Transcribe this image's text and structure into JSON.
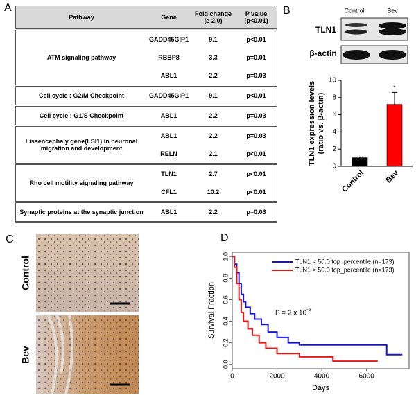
{
  "panel_labels": [
    "A",
    "B",
    "C",
    "D"
  ],
  "table": {
    "header": [
      "Pathway",
      "Gene",
      "Fold change (≥ 2.0)",
      "P value (p<0.01)"
    ],
    "groups": [
      {
        "pathway": "ATM signaling pathway",
        "rows": [
          [
            "GADD45GIP1",
            "9.1",
            "p<0.01"
          ],
          [
            "RBBP8",
            "3.3",
            "p=0.01"
          ],
          [
            "ABL1",
            "2.2",
            "p=0.03"
          ]
        ]
      },
      {
        "pathway": "Cell cycle : G2/M Checkpoint",
        "rows": [
          [
            "GADD45GIP1",
            "9.1",
            "p<0.01"
          ]
        ]
      },
      {
        "pathway": "Cell cycle : G1/S Checkpoint",
        "rows": [
          [
            "ABL1",
            "2.2",
            "p=0.03"
          ]
        ]
      },
      {
        "pathway": "Lissencephaly gene(LSI1) in neuronal migration and development",
        "rows": [
          [
            "ABL1",
            "2.2",
            "p=0.03"
          ],
          [
            "RELN",
            "2.1",
            "p<0.01"
          ]
        ]
      },
      {
        "pathway": "Rho cell motility signaling pathway",
        "rows": [
          [
            "TLN1",
            "2.7",
            "p<0.01"
          ],
          [
            "CFL1",
            "10.2",
            "p<0.01"
          ]
        ]
      },
      {
        "pathway": "Synaptic proteins at the synaptic junction",
        "rows": [
          [
            "ABL1",
            "2.2",
            "p=0.03"
          ]
        ]
      }
    ]
  },
  "blot": {
    "lanes": [
      "Control",
      "Bev"
    ],
    "rows": [
      "TLN1",
      "β-actin"
    ]
  },
  "ihc": {
    "rows": [
      "Control",
      "Bev"
    ]
  },
  "chart_data": [
    {
      "type": "bar",
      "y_label": [
        "TLN1 expression levels",
        "(ratio vs. β-actin)"
      ],
      "categories": [
        "Control",
        "Bev"
      ],
      "values": [
        1.0,
        7.2
      ],
      "errors": [
        0.1,
        1.4
      ],
      "colors": [
        "#000000",
        "#ff0000"
      ],
      "ylim": [
        0,
        10
      ],
      "yticks": [
        0,
        2,
        4,
        6,
        8,
        10
      ],
      "annotation": "*"
    },
    {
      "type": "line",
      "x_label": "Days",
      "y_label": "Survival Fraction",
      "series": [
        {
          "name": "TLN1 < 50.0 top_percentile (n=173)",
          "color": "#1515d8",
          "x": [
            0,
            100,
            200,
            300,
            400,
            500,
            600,
            800,
            1000,
            1300,
            1600,
            2000,
            2500,
            3000,
            6900,
            7600
          ],
          "values": [
            1.0,
            0.93,
            0.85,
            0.75,
            0.65,
            0.58,
            0.53,
            0.47,
            0.42,
            0.37,
            0.3,
            0.25,
            0.2,
            0.18,
            0.09,
            0.09
          ]
        },
        {
          "name": "TLN1 > 50.0 top_percentile (n=173)",
          "color": "#e01818",
          "x": [
            0,
            100,
            200,
            300,
            400,
            500,
            700,
            900,
            1200,
            1500,
            2000,
            3000,
            4500,
            6500
          ],
          "values": [
            1.0,
            0.9,
            0.75,
            0.6,
            0.48,
            0.4,
            0.33,
            0.27,
            0.2,
            0.15,
            0.1,
            0.07,
            0.03,
            0.03
          ]
        }
      ],
      "xlim": [
        0,
        7900
      ],
      "ylim": [
        -0.04,
        1.04
      ],
      "xticks": [
        0,
        2000,
        4000,
        6000
      ],
      "yticks": [
        {
          "value": 0,
          "label": "0.0"
        },
        0.2,
        0.4,
        0.6,
        0.8,
        {
          "value": 1,
          "label": "1.0"
        }
      ],
      "annotation": "P = 2 x 10",
      "annotation_sup": "-5",
      "legend": "upper right"
    }
  ]
}
